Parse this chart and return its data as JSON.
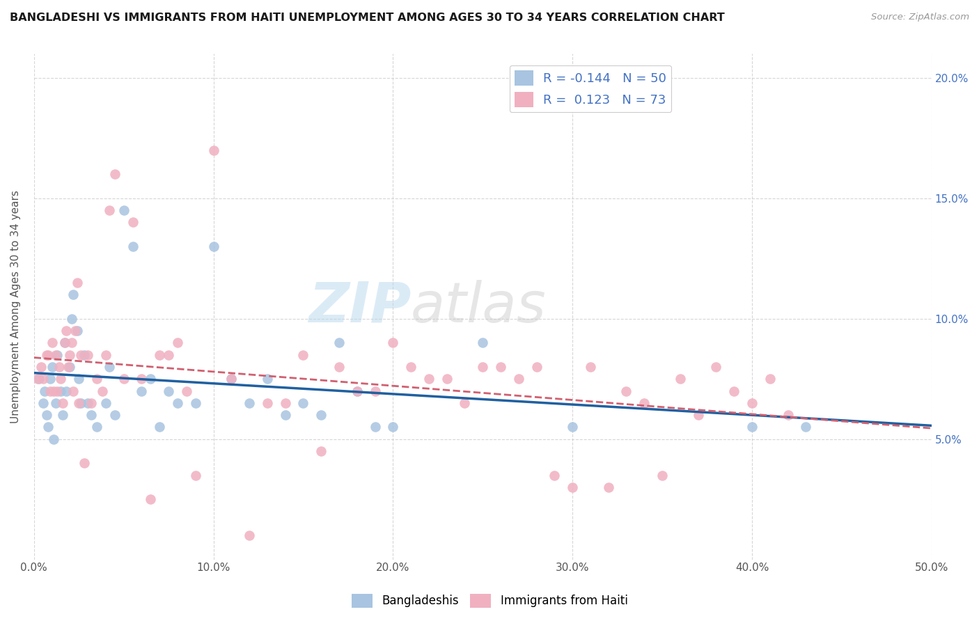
{
  "title": "BANGLADESHI VS IMMIGRANTS FROM HAITI UNEMPLOYMENT AMONG AGES 30 TO 34 YEARS CORRELATION CHART",
  "source": "Source: ZipAtlas.com",
  "xlabel_vals": [
    0,
    10,
    20,
    30,
    40,
    50
  ],
  "ylabel": "Unemployment Among Ages 30 to 34 years",
  "ylabel_right_vals": [
    5,
    10,
    15,
    20
  ],
  "xlim": [
    0,
    50
  ],
  "ylim": [
    0,
    21
  ],
  "r_bangladeshi": -0.144,
  "n_bangladeshi": 50,
  "r_haiti": 0.123,
  "n_haiti": 73,
  "color_bangladeshi": "#a8c4e0",
  "color_haiti": "#f0b0c0",
  "line_color_bangladeshi": "#2060a0",
  "line_color_haiti": "#d06070",
  "watermark_zip": "ZIP",
  "watermark_atlas": "atlas",
  "bangladeshi_x": [
    0.3,
    0.5,
    0.6,
    0.7,
    0.8,
    0.9,
    1.0,
    1.1,
    1.2,
    1.3,
    1.5,
    1.6,
    1.7,
    1.8,
    2.0,
    2.1,
    2.2,
    2.4,
    2.5,
    2.6,
    2.8,
    3.0,
    3.2,
    3.5,
    4.0,
    4.2,
    4.5,
    5.0,
    5.5,
    6.0,
    6.5,
    7.0,
    7.5,
    8.0,
    9.0,
    10.0,
    11.0,
    12.0,
    13.0,
    14.0,
    15.0,
    16.0,
    17.0,
    18.0,
    19.0,
    20.0,
    25.0,
    30.0,
    40.0,
    43.0
  ],
  "bangladeshi_y": [
    7.5,
    6.5,
    7.0,
    6.0,
    5.5,
    7.5,
    8.0,
    5.0,
    6.5,
    8.5,
    7.0,
    6.0,
    9.0,
    7.0,
    8.0,
    10.0,
    11.0,
    9.5,
    7.5,
    6.5,
    8.5,
    6.5,
    6.0,
    5.5,
    6.5,
    8.0,
    6.0,
    14.5,
    13.0,
    7.0,
    7.5,
    5.5,
    7.0,
    6.5,
    6.5,
    13.0,
    7.5,
    6.5,
    7.5,
    6.0,
    6.5,
    6.0,
    9.0,
    7.0,
    5.5,
    5.5,
    9.0,
    5.5,
    5.5,
    5.5
  ],
  "haiti_x": [
    0.2,
    0.4,
    0.5,
    0.7,
    0.8,
    0.9,
    1.0,
    1.1,
    1.2,
    1.3,
    1.4,
    1.5,
    1.6,
    1.7,
    1.8,
    1.9,
    2.0,
    2.1,
    2.2,
    2.3,
    2.4,
    2.5,
    2.6,
    2.8,
    3.0,
    3.2,
    3.5,
    3.8,
    4.0,
    4.2,
    4.5,
    5.0,
    5.5,
    6.0,
    6.5,
    7.0,
    7.5,
    8.0,
    8.5,
    9.0,
    10.0,
    11.0,
    12.0,
    13.0,
    14.0,
    15.0,
    16.0,
    17.0,
    18.0,
    19.0,
    20.0,
    21.0,
    22.0,
    23.0,
    24.0,
    25.0,
    26.0,
    27.0,
    28.0,
    29.0,
    30.0,
    31.0,
    32.0,
    33.0,
    34.0,
    35.0,
    36.0,
    37.0,
    38.0,
    39.0,
    40.0,
    41.0,
    42.0
  ],
  "haiti_y": [
    7.5,
    8.0,
    7.5,
    8.5,
    8.5,
    7.0,
    9.0,
    7.0,
    8.5,
    7.0,
    8.0,
    7.5,
    6.5,
    9.0,
    9.5,
    8.0,
    8.5,
    9.0,
    7.0,
    9.5,
    11.5,
    6.5,
    8.5,
    4.0,
    8.5,
    6.5,
    7.5,
    7.0,
    8.5,
    14.5,
    16.0,
    7.5,
    14.0,
    7.5,
    2.5,
    8.5,
    8.5,
    9.0,
    7.0,
    3.5,
    17.0,
    7.5,
    1.0,
    6.5,
    6.5,
    8.5,
    4.5,
    8.0,
    7.0,
    7.0,
    9.0,
    8.0,
    7.5,
    7.5,
    6.5,
    8.0,
    8.0,
    7.5,
    8.0,
    3.5,
    3.0,
    8.0,
    3.0,
    7.0,
    6.5,
    3.5,
    7.5,
    6.0,
    8.0,
    7.0,
    6.5,
    7.5,
    6.0
  ],
  "legend_entries": [
    {
      "r": "-0.144",
      "n": "50"
    },
    {
      "r": "0.123",
      "n": "73"
    }
  ]
}
